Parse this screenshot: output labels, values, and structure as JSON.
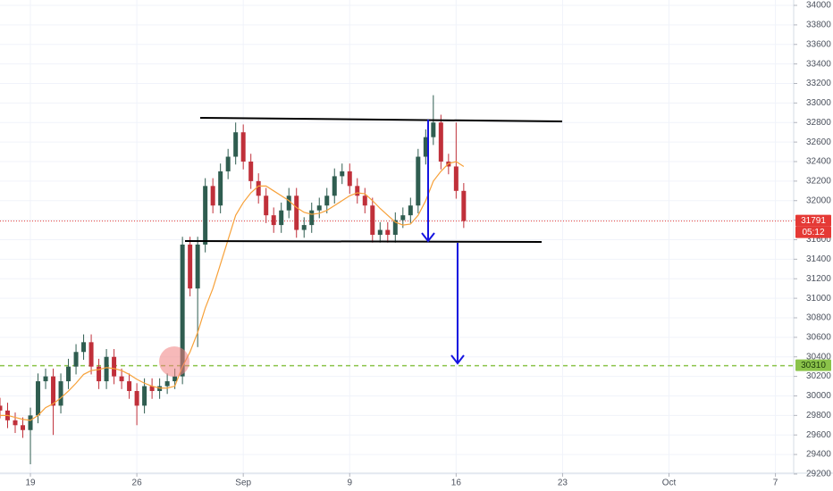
{
  "chart_data": {
    "type": "candlestick",
    "x": [
      -2,
      -1.5,
      -1,
      -0.5,
      0,
      0.5,
      1,
      1.5,
      2,
      2.5,
      3,
      3.5,
      4,
      4.5,
      5,
      5.5,
      6,
      6.5,
      7,
      7.5,
      8,
      8.5,
      9,
      9.5,
      10,
      10.5,
      11,
      11.5,
      12,
      12.5,
      13,
      13.5,
      14,
      14.5,
      15,
      15.5,
      16,
      16.5,
      17,
      17.5,
      18,
      18.5,
      19,
      19.5,
      20,
      20.5,
      21,
      21.5,
      22,
      22.5,
      23,
      23.5,
      24,
      24.5,
      25,
      25.5,
      26,
      26.5,
      27,
      27.5,
      28,
      28.5
    ],
    "open": [
      29900,
      29850,
      29750,
      29700,
      29650,
      29800,
      30150,
      30200,
      29900,
      30150,
      30300,
      30450,
      30550,
      30300,
      30150,
      30400,
      30200,
      30150,
      30050,
      29900,
      30100,
      30050,
      30100,
      30150,
      30200,
      31550,
      31100,
      31550,
      32150,
      31950,
      32300,
      32450,
      32700,
      32400,
      32200,
      32050,
      31850,
      31750,
      31900,
      32050,
      31700,
      31750,
      31900,
      31950,
      32050,
      32250,
      32300,
      32150,
      32050,
      31950,
      31650,
      31700,
      31650,
      31800,
      31850,
      31950,
      32450,
      32650,
      32800,
      32400,
      32350,
      32100
    ],
    "high": [
      29980,
      29930,
      29830,
      29780,
      29880,
      30230,
      30280,
      30280,
      30230,
      30380,
      30530,
      30630,
      30630,
      30380,
      30480,
      30480,
      30280,
      30230,
      30130,
      30180,
      30180,
      30180,
      30230,
      30280,
      31630,
      31630,
      31630,
      32230,
      32230,
      32380,
      32530,
      32800,
      32780,
      32480,
      32280,
      32130,
      31930,
      31980,
      32130,
      32130,
      31830,
      31980,
      32030,
      32130,
      32330,
      32380,
      32380,
      32230,
      32130,
      32030,
      31780,
      31780,
      31880,
      31930,
      32030,
      32530,
      32730,
      33080,
      32880,
      32480,
      32800,
      32180
    ],
    "low": [
      29770,
      29670,
      29620,
      29570,
      29300,
      29720,
      30070,
      29600,
      29820,
      30070,
      30220,
      30370,
      30220,
      30070,
      30070,
      30120,
      30070,
      29970,
      29700,
      29820,
      29970,
      29970,
      30020,
      30070,
      30120,
      31020,
      30500,
      31470,
      31870,
      31870,
      32220,
      32370,
      32320,
      32120,
      31970,
      31770,
      31670,
      31670,
      31820,
      31620,
      31620,
      31670,
      31820,
      31870,
      31970,
      32170,
      32070,
      31970,
      31870,
      31570,
      31570,
      31570,
      31570,
      31720,
      31770,
      31870,
      32370,
      32570,
      32320,
      32270,
      32020,
      31720
    ],
    "close": [
      29850,
      29750,
      29700,
      29650,
      29800,
      30150,
      30200,
      29900,
      30150,
      30300,
      30450,
      30550,
      30300,
      30150,
      30400,
      30200,
      30150,
      30050,
      29900,
      30100,
      30050,
      30100,
      30150,
      30200,
      31550,
      31100,
      31550,
      32150,
      31950,
      32300,
      32450,
      32700,
      32400,
      32200,
      32050,
      31850,
      31750,
      31900,
      32050,
      31700,
      31750,
      31900,
      31950,
      32050,
      32250,
      32300,
      32150,
      32050,
      31950,
      31650,
      31700,
      31650,
      31800,
      31850,
      31950,
      32450,
      32650,
      32800,
      32400,
      32350,
      32100,
      31791
    ],
    "up_color": "#2f5d50",
    "down_color": "#c0303a",
    "ma": {
      "color": "#f7a139",
      "values": [
        29800,
        29800,
        29780,
        29760,
        29750,
        29800,
        29880,
        29920,
        29980,
        30050,
        30130,
        30220,
        30260,
        30270,
        30290,
        30280,
        30260,
        30220,
        30170,
        30130,
        30100,
        30080,
        30080,
        30100,
        30300,
        30450,
        30650,
        30900,
        31100,
        31350,
        31600,
        31850,
        31980,
        32080,
        32150,
        32150,
        32100,
        32050,
        32000,
        31930,
        31880,
        31860,
        31870,
        31900,
        31950,
        32000,
        32050,
        32080,
        32070,
        32000,
        31920,
        31850,
        31780,
        31750,
        31760,
        31850,
        32000,
        32200,
        32300,
        32380,
        32400,
        32350
      ]
    },
    "xlim": [
      -2,
      50.2
    ],
    "ylim": [
      29026,
      34055
    ],
    "xticks": [
      {
        "value": 0,
        "label": "19"
      },
      {
        "value": 7,
        "label": "26"
      },
      {
        "value": 14,
        "label": "Sep"
      },
      {
        "value": 21,
        "label": "9"
      },
      {
        "value": 28,
        "label": "16"
      },
      {
        "value": 35,
        "label": "23"
      },
      {
        "value": 42,
        "label": "Oct"
      },
      {
        "value": 49,
        "label": "7"
      }
    ],
    "yticks": [
      29200,
      29400,
      29600,
      29800,
      30000,
      30200,
      30400,
      30600,
      30800,
      31000,
      31200,
      31400,
      31600,
      31800,
      32000,
      32200,
      32400,
      32600,
      32800,
      33000,
      33200,
      33400,
      33600,
      33800,
      34000
    ],
    "grid": true,
    "price_line": {
      "value": 31791,
      "color": "#e53935"
    },
    "countdown": "05:12",
    "level_line": {
      "value": 30310,
      "color": "#8bc34a"
    }
  }
}
